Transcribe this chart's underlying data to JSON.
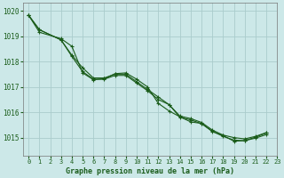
{
  "title": "Graphe pression niveau de la mer (hPa)",
  "xlim": [
    -0.5,
    23
  ],
  "ylim": [
    1014.3,
    1020.3
  ],
  "yticks": [
    1015,
    1016,
    1017,
    1018,
    1019,
    1020
  ],
  "xticks": [
    0,
    1,
    2,
    3,
    4,
    5,
    6,
    7,
    8,
    9,
    10,
    11,
    12,
    13,
    14,
    15,
    16,
    17,
    18,
    19,
    20,
    21,
    22,
    23
  ],
  "bg_color": "#cce8e8",
  "line_color": "#1a5c1a",
  "grid_color": "#aacccc",
  "line1": {
    "x": [
      0,
      1,
      3,
      4,
      5,
      6,
      7,
      8,
      9,
      10,
      11,
      12,
      13,
      14,
      15,
      16,
      17,
      18,
      19,
      20,
      21,
      22
    ],
    "y": [
      1019.82,
      1019.25,
      1018.85,
      1018.25,
      1017.75,
      1017.35,
      1017.35,
      1017.5,
      1017.5,
      1017.2,
      1016.9,
      1016.6,
      1016.3,
      1015.85,
      1015.75,
      1015.6,
      1015.3,
      1015.1,
      1015.0,
      1014.95,
      1015.05,
      1015.2
    ]
  },
  "line2": {
    "x": [
      0,
      1,
      3,
      4,
      5,
      6,
      7,
      8,
      9,
      10,
      11,
      12,
      13,
      14,
      15,
      16,
      17,
      18,
      19,
      20,
      21,
      22
    ],
    "y": [
      1019.82,
      1019.25,
      1018.85,
      1018.2,
      1017.6,
      1017.3,
      1017.3,
      1017.45,
      1017.45,
      1017.15,
      1016.85,
      1016.5,
      1016.3,
      1015.8,
      1015.7,
      1015.55,
      1015.25,
      1015.05,
      1014.9,
      1014.88,
      1014.98,
      1015.12
    ]
  },
  "line3": {
    "x": [
      0,
      1,
      3,
      4,
      5,
      6,
      7,
      8,
      9,
      10,
      11,
      12,
      13,
      14,
      15,
      16,
      17,
      18,
      19,
      20,
      21,
      22
    ],
    "y": [
      1019.82,
      1019.15,
      1018.9,
      1018.6,
      1017.55,
      1017.28,
      1017.32,
      1017.52,
      1017.55,
      1017.3,
      1017.0,
      1016.35,
      1016.05,
      1015.82,
      1015.62,
      1015.56,
      1015.24,
      1015.08,
      1014.86,
      1014.88,
      1015.02,
      1015.18
    ]
  }
}
